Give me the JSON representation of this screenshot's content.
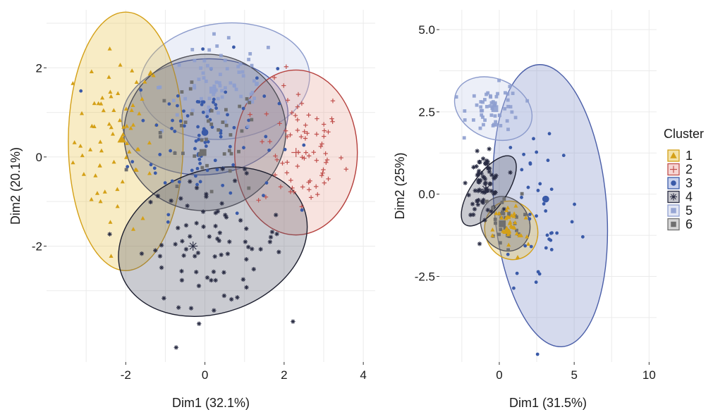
{
  "chart_data": [
    {
      "type": "scatter",
      "panel": "left",
      "xlabel": "Dim1 (32.1%)",
      "ylabel": "Dim2 (20.1%)",
      "xlim": [
        -4,
        4.3
      ],
      "ylim": [
        -4.6,
        3.3
      ],
      "xticks": [
        -2,
        0,
        2,
        4
      ],
      "yticks": [
        -2,
        0,
        2
      ],
      "xtick_labels": [
        "-2",
        "0",
        "2",
        "4"
      ],
      "ytick_labels": [
        "-2",
        "0",
        "2"
      ],
      "grid": true,
      "ellipses": [
        {
          "cluster": "5",
          "cx": 0.5,
          "cy": 1.7,
          "rx": 2.15,
          "ry": 1.3,
          "angle": -6
        },
        {
          "cluster": "3",
          "cx": 0.0,
          "cy": 0.9,
          "rx": 2.1,
          "ry": 1.3,
          "angle": -4
        },
        {
          "cluster": "2",
          "cx": 2.3,
          "cy": 0.1,
          "rx": 1.55,
          "ry": 1.85,
          "angle": 0
        },
        {
          "cluster": "1",
          "cx": -2.0,
          "cy": 0.35,
          "rx": 1.45,
          "ry": 2.9,
          "angle": 0
        },
        {
          "cluster": "6",
          "cx": 0.0,
          "cy": 0.55,
          "rx": 2.05,
          "ry": 1.75,
          "angle": -15
        },
        {
          "cluster": "4",
          "cx": 0.2,
          "cy": -1.9,
          "rx": 2.45,
          "ry": 1.6,
          "angle": -20
        }
      ],
      "centroids": [
        {
          "cluster": "1",
          "x": -2.1,
          "y": 0.4
        },
        {
          "cluster": "2",
          "x": 2.3,
          "y": 0.1
        },
        {
          "cluster": "3",
          "x": 0.0,
          "y": 0.55
        },
        {
          "cluster": "4",
          "x": -0.3,
          "y": -2.0
        },
        {
          "cluster": "5",
          "x": 0.2,
          "y": 1.5
        },
        {
          "cluster": "6",
          "x": -0.05,
          "y": 0.1
        }
      ],
      "point_clouds": [
        {
          "cluster": "1",
          "cx": -2.2,
          "cy": 0.4,
          "sx": 0.55,
          "sy": 1.0,
          "n": 70
        },
        {
          "cluster": "2",
          "cx": 2.4,
          "cy": 0.15,
          "sx": 0.55,
          "sy": 0.75,
          "n": 75
        },
        {
          "cluster": "3",
          "cx": 0.0,
          "cy": 0.5,
          "sx": 0.9,
          "sy": 0.85,
          "n": 95
        },
        {
          "cluster": "4",
          "cx": 0.2,
          "cy": -1.9,
          "sx": 0.9,
          "sy": 0.7,
          "n": 80
        },
        {
          "cluster": "5",
          "cx": 0.4,
          "cy": 1.6,
          "sx": 0.75,
          "sy": 0.55,
          "n": 70
        },
        {
          "cluster": "6",
          "cx": 0.0,
          "cy": 0.3,
          "sx": 0.75,
          "sy": 0.65,
          "n": 40
        }
      ]
    },
    {
      "type": "scatter",
      "panel": "right",
      "xlabel": "Dim1 (31.5%)",
      "ylabel": "Dim2 (25%)",
      "xlim": [
        -4,
        10.5
      ],
      "ylim": [
        -5.1,
        5.6
      ],
      "xticks": [
        0,
        5,
        10
      ],
      "yticks": [
        -2.5,
        0.0,
        2.5,
        5.0
      ],
      "xtick_labels": [
        "0",
        "5",
        "10"
      ],
      "ytick_labels": [
        "-2.5",
        "0.0",
        "2.5",
        "5.0"
      ],
      "grid": true,
      "ellipses": [
        {
          "cluster": "3",
          "cx": 3.4,
          "cy": -0.35,
          "rx": 3.75,
          "ry": 4.3,
          "angle": -5
        },
        {
          "cluster": "5",
          "cx": -0.4,
          "cy": 2.6,
          "rx": 2.7,
          "ry": 0.9,
          "angle": 25
        },
        {
          "cluster": "1",
          "cx": 0.8,
          "cy": -1.1,
          "rx": 1.75,
          "ry": 0.9,
          "angle": -18
        },
        {
          "cluster": "6",
          "cx": 0.4,
          "cy": -0.9,
          "rx": 1.6,
          "ry": 0.85,
          "angle": -25
        },
        {
          "cluster": "4",
          "cx": -0.7,
          "cy": 0.1,
          "rx": 1.15,
          "ry": 1.25,
          "angle": 35
        }
      ],
      "centroids": [
        {
          "cluster": "1",
          "x": 0.5,
          "y": -1.1
        },
        {
          "cluster": "3",
          "x": 3.1,
          "y": -0.15
        },
        {
          "cluster": "4",
          "x": -0.9,
          "y": 0.15
        },
        {
          "cluster": "5",
          "x": -0.3,
          "y": 2.6
        },
        {
          "cluster": "6",
          "x": 0.2,
          "y": -0.9
        }
      ],
      "point_clouds": [
        {
          "cluster": "5",
          "cx": -0.3,
          "cy": 2.6,
          "sx": 0.9,
          "sy": 0.35,
          "n": 55
        },
        {
          "cluster": "4",
          "cx": -1.0,
          "cy": 0.3,
          "sx": 0.55,
          "sy": 0.45,
          "n": 70
        },
        {
          "cluster": "6",
          "cx": 0.2,
          "cy": -0.8,
          "sx": 0.65,
          "sy": 0.4,
          "n": 30
        },
        {
          "cluster": "1",
          "cx": 0.8,
          "cy": -1.1,
          "sx": 0.6,
          "sy": 0.45,
          "n": 35
        },
        {
          "cluster": "3",
          "cx": 2.8,
          "cy": -0.3,
          "sx": 1.3,
          "sy": 1.6,
          "n": 40
        }
      ]
    }
  ],
  "legend": {
    "title": "Cluster",
    "position": "right",
    "items": [
      {
        "label": "1",
        "color": "#d4a017",
        "fill": "#f3e2a9",
        "shape": "triangle"
      },
      {
        "label": "2",
        "color": "#c0504d",
        "fill": "#f6d6d4",
        "shape": "plus"
      },
      {
        "label": "3",
        "color": "#3a5aa8",
        "fill": "#c9d2ee",
        "shape": "circle"
      },
      {
        "label": "4",
        "color": "#2a2d44",
        "fill": "#c6c6cc",
        "shape": "asterisk"
      },
      {
        "label": "5",
        "color": "#8e9fcf",
        "fill": "#e3e7f4",
        "shape": "boxed-x"
      },
      {
        "label": "6",
        "color": "#6f6f6f",
        "fill": "#d6d6d6",
        "shape": "square"
      }
    ]
  },
  "colors": {
    "1": {
      "stroke": "#d4a017",
      "fill": "#e8c44c",
      "point": "#d4a017"
    },
    "2": {
      "stroke": "#b5403d",
      "fill": "#e9a79a",
      "point": "#c0504d"
    },
    "3": {
      "stroke": "#4a5ea8",
      "fill": "#7d8cc8",
      "point": "#3a5aa8"
    },
    "4": {
      "stroke": "#1c1e2e",
      "fill": "#5b5d70",
      "point": "#2a2d44"
    },
    "5": {
      "stroke": "#8c9bcc",
      "fill": "#c4cdea",
      "point": "#8e9fcf"
    },
    "6": {
      "stroke": "#505058",
      "fill": "#6d6e78",
      "point": "#6f6f6f"
    }
  }
}
